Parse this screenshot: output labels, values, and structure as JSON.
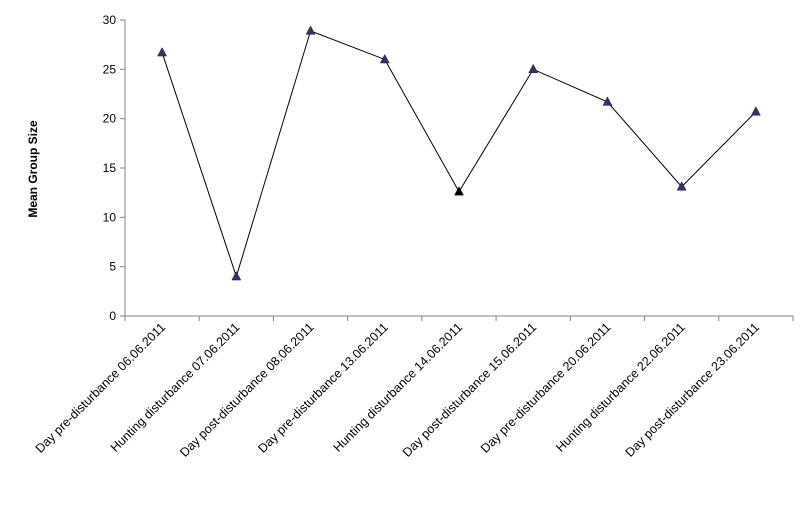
{
  "chart_data": {
    "type": "line",
    "title": "",
    "xlabel": "",
    "ylabel": "Mean Group Size",
    "ylim": [
      0,
      30
    ],
    "yticks": [
      0,
      5,
      10,
      15,
      20,
      25,
      30
    ],
    "grid": false,
    "legend": "none",
    "categories": [
      "Day pre-disturbance 06.06.2011",
      "Hunting disturbance 07.06.2011",
      "Day post-disturbance 08.06.2011",
      "Day pre-disturbance 13.06.2011",
      "Hunting disturbance 14.06.2011",
      "Day post-disturbance 15.06.2011",
      "Day pre-disturbance 20.06.2011",
      "Hunting disturbance 22.06.2011",
      "Day post-disturbance 23.06.2011"
    ],
    "series": [
      {
        "values": [
          26.7,
          4.0,
          28.9,
          26.0,
          12.6,
          25.0,
          21.7,
          13.1,
          20.7
        ],
        "line_color": "#000000",
        "marker": "triangle",
        "marker_color": "#3a2e6e",
        "highlight_marker_color": "#000000",
        "highlight_index": 4
      }
    ]
  }
}
